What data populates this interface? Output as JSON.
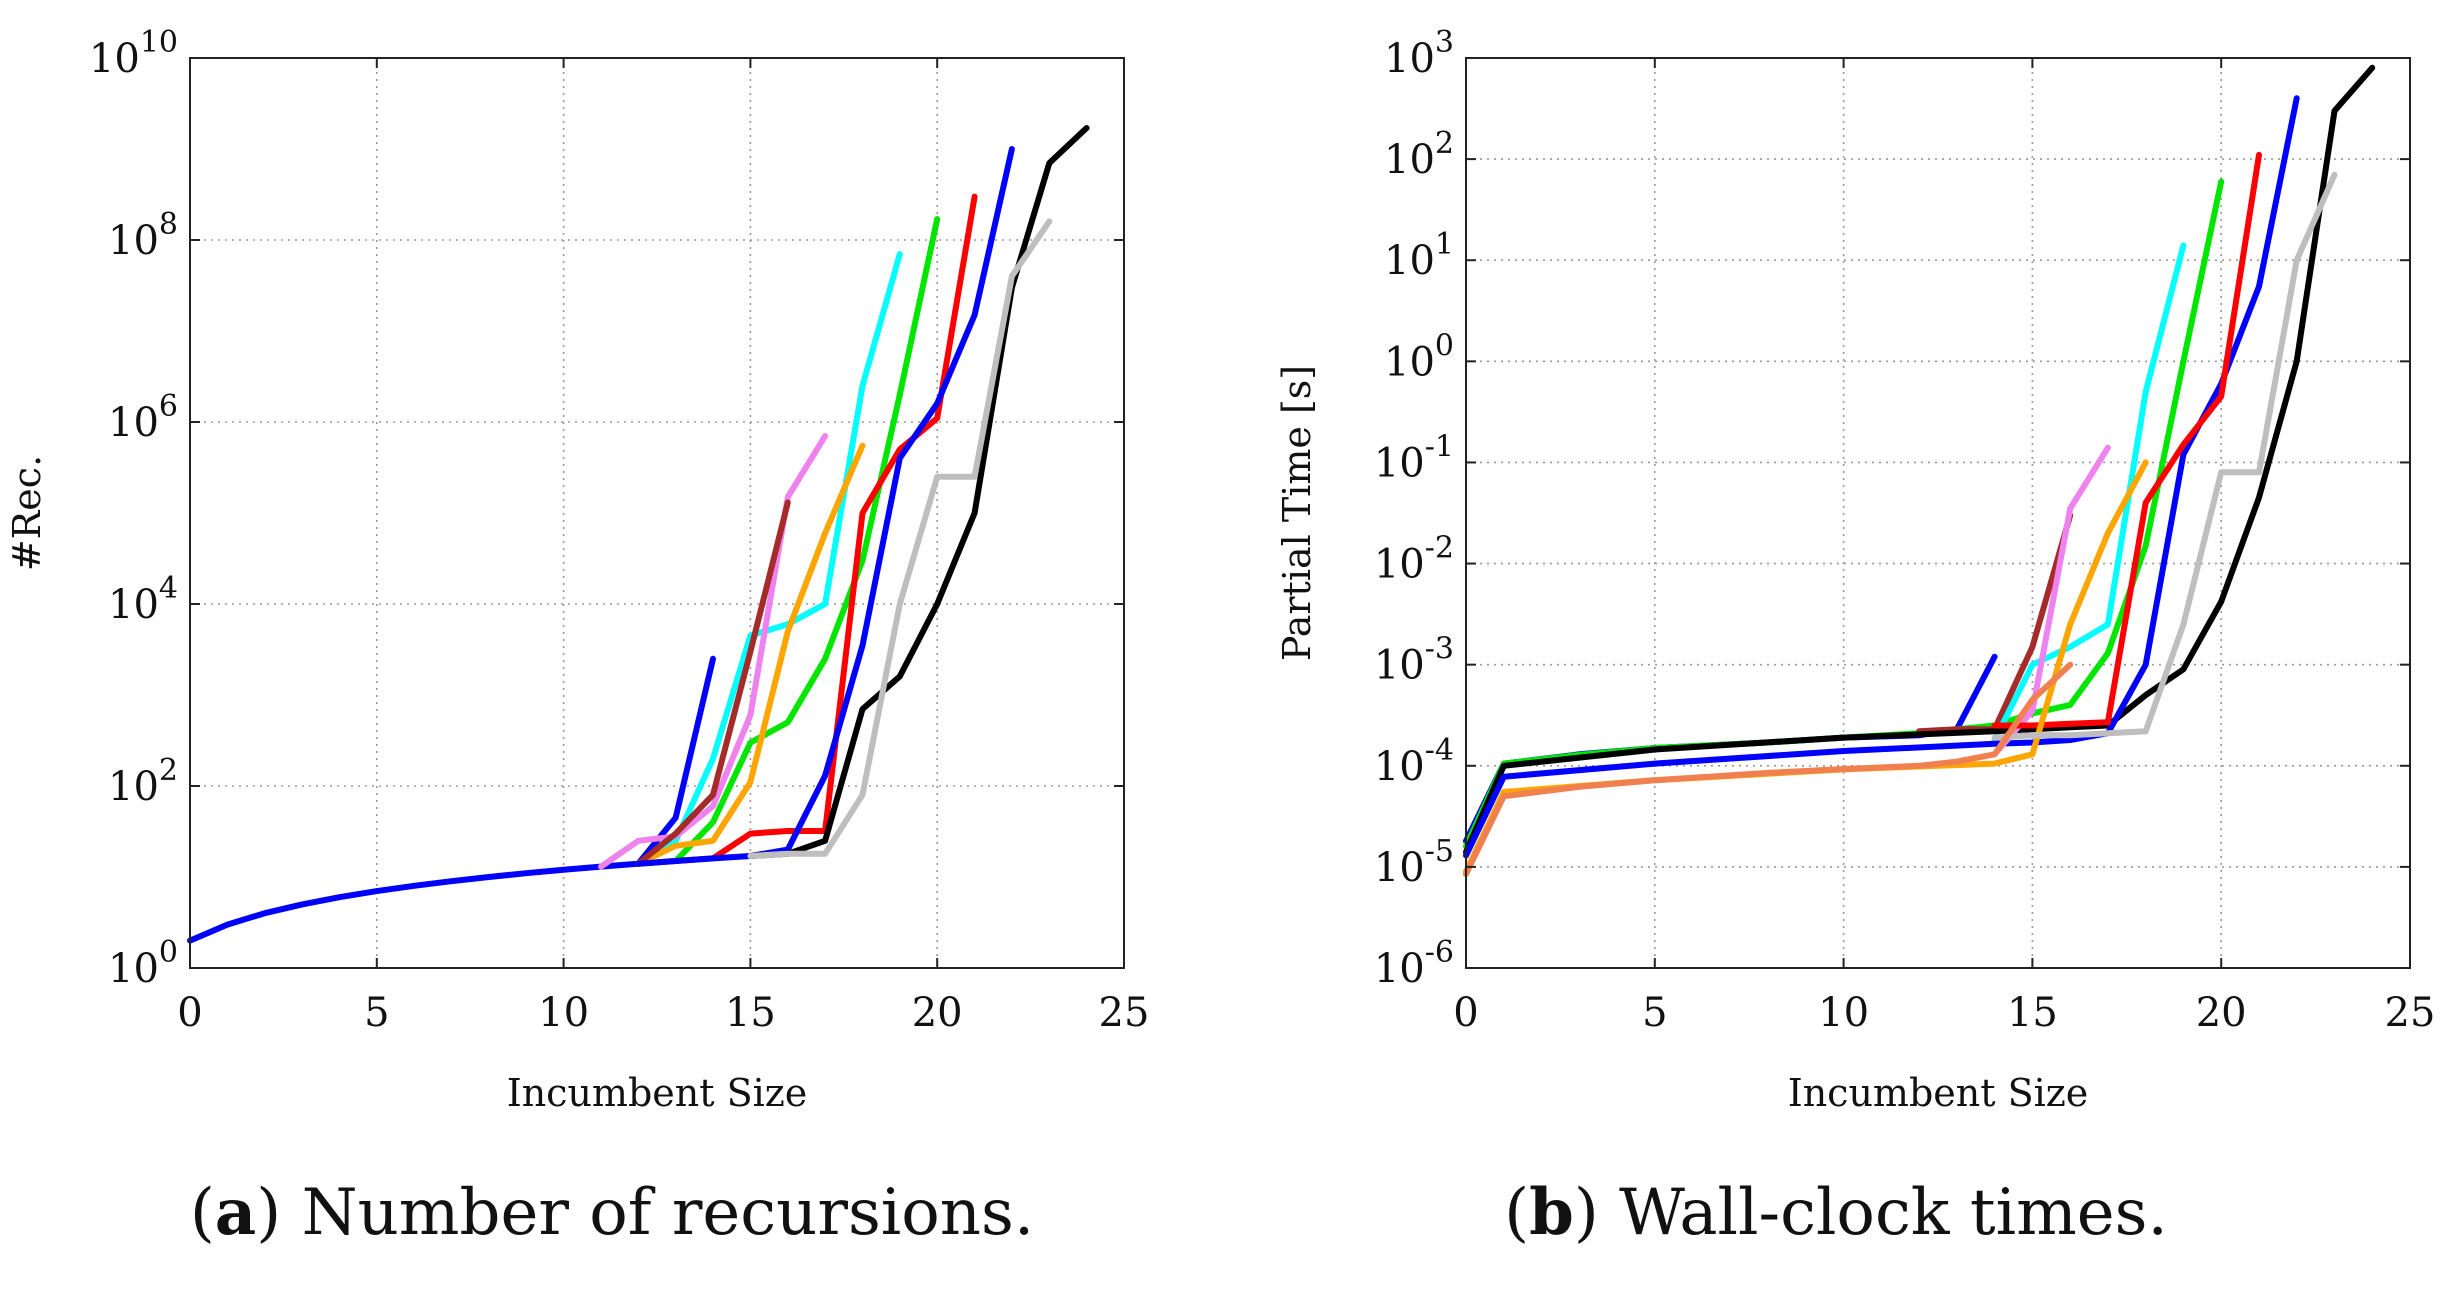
{
  "chart_data": [
    {
      "type": "line",
      "panel": "a",
      "caption_letter": "a",
      "caption_text": "Number of recursions.",
      "xlabel": "Incumbent Size",
      "ylabel": "#Rec.",
      "xlim": [
        0,
        25
      ],
      "ylim": [
        1,
        10000000000
      ],
      "yscale": "log",
      "xticks": [
        0,
        5,
        10,
        15,
        20,
        25
      ],
      "yticks": [
        {
          "base": "10",
          "exp": "0"
        },
        {
          "base": "10",
          "exp": "2"
        },
        {
          "base": "10",
          "exp": "4"
        },
        {
          "base": "10",
          "exp": "6"
        },
        {
          "base": "10",
          "exp": "8"
        },
        {
          "base": "10",
          "exp": "10"
        }
      ],
      "grid": true,
      "series": [
        {
          "color": "#0000ff",
          "x": [
            0,
            1,
            2,
            3,
            4,
            5,
            6,
            7,
            8,
            9,
            10,
            11,
            12,
            13,
            14
          ],
          "y": [
            2,
            3,
            4,
            5,
            6,
            7,
            8,
            9,
            10,
            11,
            12,
            13,
            14,
            45,
            2500
          ]
        },
        {
          "color": "#00ffff",
          "x": [
            12,
            13,
            14,
            15,
            16,
            17,
            18,
            19
          ],
          "y": [
            14,
            25,
            200,
            4500,
            6000,
            10000,
            2500000,
            70000000
          ]
        },
        {
          "color": "#00e600",
          "x": [
            12,
            13,
            14,
            15,
            16,
            17,
            18,
            19,
            20
          ],
          "y": [
            14,
            15,
            40,
            300,
            500,
            2500,
            30000,
            2000000,
            170000000
          ]
        },
        {
          "color": "#ffa500",
          "x": [
            12,
            13,
            14,
            15,
            16,
            17,
            18
          ],
          "y": [
            14,
            22,
            25,
            110,
            5000,
            60000,
            550000
          ]
        },
        {
          "color": "#ee82ee",
          "x": [
            11,
            12,
            13,
            14,
            15,
            16,
            17
          ],
          "y": [
            13,
            25,
            28,
            60,
            600,
            150000,
            700000
          ]
        },
        {
          "color": "#a52a2a",
          "x": [
            12,
            13,
            14,
            15,
            16
          ],
          "y": [
            14,
            30,
            80,
            3000,
            130000
          ]
        },
        {
          "color": "#ff0000",
          "x": [
            12,
            13,
            14,
            15,
            16,
            17,
            18,
            19,
            20,
            21
          ],
          "y": [
            14,
            15,
            16,
            30,
            32,
            32,
            100000,
            500000,
            1100000,
            300000000
          ]
        },
        {
          "color": "#0000ff",
          "x": [
            12,
            13,
            14,
            15,
            16,
            17,
            18,
            19,
            20,
            21,
            22
          ],
          "y": [
            14,
            15,
            16,
            17,
            20,
            130,
            3500,
            400000,
            1600000,
            15000000,
            1000000000
          ]
        },
        {
          "color": "#000000",
          "x": [
            15,
            16,
            17,
            18,
            19,
            20,
            21,
            22,
            23,
            24
          ],
          "y": [
            17,
            18,
            25,
            700,
            1600,
            10000,
            100000,
            30000000,
            700000000,
            1700000000
          ]
        },
        {
          "color": "#bebebe",
          "x": [
            15,
            16,
            17,
            18,
            19,
            20,
            21,
            22,
            23
          ],
          "y": [
            17,
            18,
            18,
            80,
            10000,
            250000,
            250000,
            40000000,
            160000000
          ]
        }
      ]
    },
    {
      "type": "line",
      "panel": "b",
      "caption_letter": "b",
      "caption_text": "Wall-clock times.",
      "xlabel": "Incumbent Size",
      "ylabel": "Partial Time [s]",
      "xlim": [
        0,
        25
      ],
      "ylim": [
        1e-06,
        1000
      ],
      "yscale": "log",
      "xticks": [
        0,
        5,
        10,
        15,
        20,
        25
      ],
      "yticks": [
        {
          "base": "10",
          "exp": "-6"
        },
        {
          "base": "10",
          "exp": "-5"
        },
        {
          "base": "10",
          "exp": "-4"
        },
        {
          "base": "10",
          "exp": "-3"
        },
        {
          "base": "10",
          "exp": "-2"
        },
        {
          "base": "10",
          "exp": "-1"
        },
        {
          "base": "10",
          "exp": "0"
        },
        {
          "base": "10",
          "exp": "1"
        },
        {
          "base": "10",
          "exp": "2"
        },
        {
          "base": "10",
          "exp": "3"
        }
      ],
      "grid": true,
      "series": [
        {
          "color": "#0000ff",
          "x": [
            0,
            1,
            3,
            5,
            8,
            10,
            12,
            13,
            14
          ],
          "y": [
            1.8e-05,
            0.000105,
            0.00013,
            0.00015,
            0.00017,
            0.00019,
            0.0002,
            0.00023,
            0.0012
          ]
        },
        {
          "color": "#00e600",
          "x": [
            0,
            1,
            3,
            5,
            8,
            10,
            12,
            14,
            15,
            16,
            17,
            18,
            19,
            20
          ],
          "y": [
            1.6e-05,
            0.000105,
            0.000128,
            0.00015,
            0.00017,
            0.00019,
            0.00021,
            0.00025,
            0.00033,
            0.0004,
            0.0013,
            0.015,
            1,
            60
          ]
        },
        {
          "color": "#a52a2a",
          "x": [
            12,
            13,
            14,
            15,
            16
          ],
          "y": [
            0.00022,
            0.00023,
            0.00023,
            0.0015,
            0.03
          ]
        },
        {
          "color": "#00ffff",
          "x": [
            14,
            15,
            16,
            17,
            18,
            19
          ],
          "y": [
            0.00018,
            0.001,
            0.0015,
            0.0025,
            0.5,
            14
          ]
        },
        {
          "color": "#000000",
          "x": [
            0,
            1,
            5,
            10,
            14,
            15,
            16,
            17,
            18,
            19,
            20,
            21,
            22,
            23,
            24
          ],
          "y": [
            1.4e-05,
            0.0001,
            0.000145,
            0.00019,
            0.00022,
            0.00023,
            0.00024,
            0.00025,
            0.0005,
            0.0009,
            0.0042,
            0.045,
            1,
            300,
            800
          ]
        },
        {
          "color": "#0000ff",
          "x": [
            0,
            1,
            5,
            10,
            14,
            15,
            16,
            17,
            18,
            19,
            20,
            21,
            22
          ],
          "y": [
            1.3e-05,
            7.8e-05,
            0.000105,
            0.00014,
            0.000165,
            0.00017,
            0.00018,
            0.00021,
            0.001,
            0.12,
            0.6,
            5.5,
            400
          ]
        },
        {
          "color": "#ee82ee",
          "x": [
            14,
            15,
            16,
            17
          ],
          "y": [
            0.00013,
            0.00035,
            0.035,
            0.14
          ]
        },
        {
          "color": "#ff0000",
          "x": [
            14,
            15,
            16,
            17,
            18,
            19,
            20,
            21
          ],
          "y": [
            0.00025,
            0.00025,
            0.00026,
            0.00027,
            0.04,
            0.15,
            0.45,
            110
          ]
        },
        {
          "color": "#ffa500",
          "x": [
            0,
            1,
            5,
            10,
            14,
            15,
            16,
            17,
            18
          ],
          "y": [
            9e-06,
            5.5e-05,
            7.2e-05,
            9.2e-05,
            0.000105,
            0.00013,
            0.0025,
            0.02,
            0.1
          ]
        },
        {
          "color": "#bebebe",
          "x": [
            14,
            15,
            16,
            17,
            18,
            19,
            20,
            21,
            22,
            23
          ],
          "y": [
            0.00019,
            0.0002,
            0.0002,
            0.00021,
            0.00022,
            0.0025,
            0.08,
            0.08,
            10,
            70
          ]
        },
        {
          "color": "#f08050",
          "x": [
            0,
            1,
            3,
            5,
            8,
            10,
            12,
            13,
            14,
            15,
            16
          ],
          "y": [
            8.5e-06,
            5e-05,
            6.2e-05,
            7.2e-05,
            8.5e-05,
            9.3e-05,
            0.0001,
            0.00011,
            0.00013,
            0.00045,
            0.001
          ]
        }
      ]
    }
  ]
}
